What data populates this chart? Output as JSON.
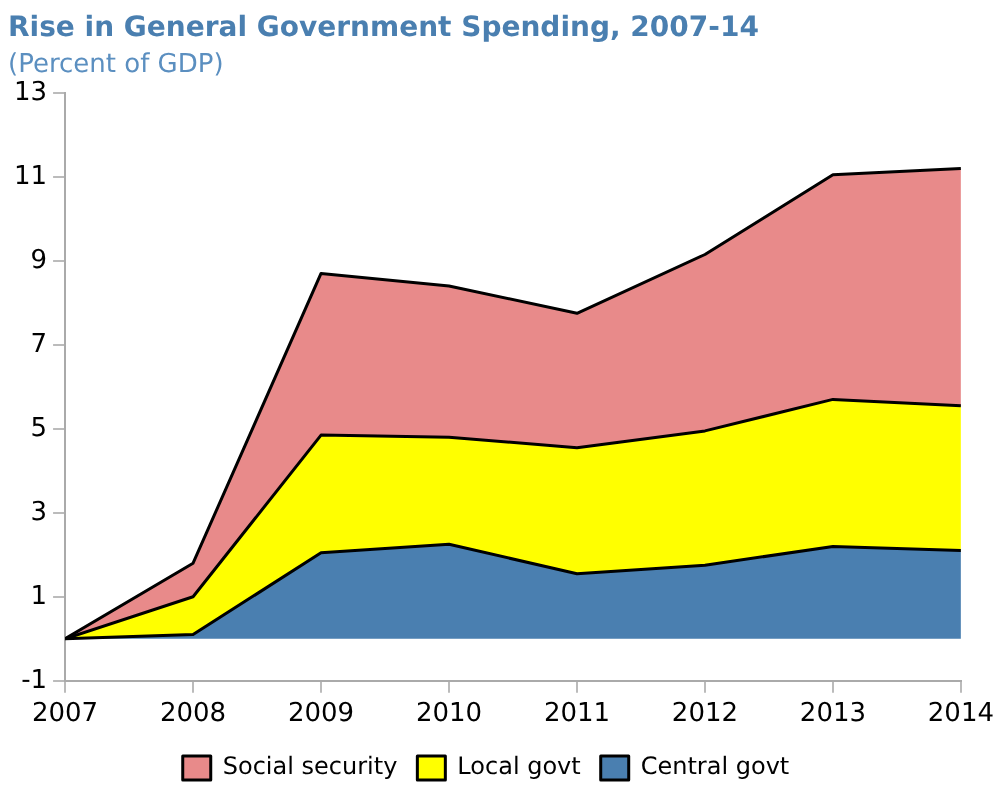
{
  "chart_data": {
    "type": "area",
    "title": "Rise in General Government Spending, 2007-14",
    "subtitle": "(Percent of GDP)",
    "x": [
      2007,
      2008,
      2009,
      2010,
      2011,
      2012,
      2013,
      2014
    ],
    "stacked": true,
    "series": [
      {
        "name": "Central govt",
        "color": "#4a7fb0",
        "values": [
          0,
          0.1,
          2.05,
          2.25,
          1.55,
          1.75,
          2.2,
          2.1
        ]
      },
      {
        "name": "Local govt",
        "color": "#ffff00",
        "values": [
          0,
          0.9,
          2.8,
          2.55,
          3.0,
          3.2,
          3.5,
          3.45
        ]
      },
      {
        "name": "Social security",
        "color": "#e88a8a",
        "values": [
          0,
          0.8,
          3.85,
          3.6,
          3.2,
          4.2,
          5.35,
          5.65
        ]
      }
    ],
    "xlim": [
      2007,
      2014
    ],
    "xticks": [
      2007,
      2008,
      2009,
      2010,
      2011,
      2012,
      2013,
      2014
    ],
    "ylim": [
      -1,
      13
    ],
    "yticks": [
      -1,
      1,
      3,
      5,
      7,
      9,
      11,
      13
    ],
    "grid": false,
    "legend": "bottom"
  }
}
